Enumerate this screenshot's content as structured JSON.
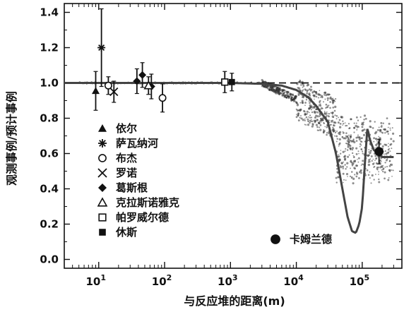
{
  "chart_data": {
    "type": "scatter",
    "title": "",
    "xlabel": "与反应堆的距离(m)",
    "ylabel": "观测事例/预计事例",
    "xscale": "log",
    "xlim": [
      3,
      400000
    ],
    "ylim": [
      -0.05,
      1.45
    ],
    "x_ticks": [
      {
        "value": 10,
        "label_base": "10",
        "label_exp": "1"
      },
      {
        "value": 100,
        "label_base": "10",
        "label_exp": "2"
      },
      {
        "value": 1000,
        "label_base": "10",
        "label_exp": "3"
      },
      {
        "value": 10000,
        "label_base": "10",
        "label_exp": "4"
      },
      {
        "value": 100000,
        "label_base": "10",
        "label_exp": "5"
      }
    ],
    "y_ticks": [
      {
        "value": 0.0,
        "label": "0.0"
      },
      {
        "value": 0.2,
        "label": "0.2"
      },
      {
        "value": 0.4,
        "label": "0.4"
      },
      {
        "value": 0.6,
        "label": "0.6"
      },
      {
        "value": 0.8,
        "label": "0.8"
      },
      {
        "value": 1.0,
        "label": "1.0"
      },
      {
        "value": 1.2,
        "label": "1.2"
      },
      {
        "value": 1.4,
        "label": "1.4"
      }
    ],
    "reference_line": {
      "y": 1.0,
      "style": "dashed"
    },
    "oscillation_curve": [
      [
        3,
        1.0
      ],
      [
        100,
        1.0
      ],
      [
        1000,
        1.0
      ],
      [
        3000,
        0.995
      ],
      [
        6000,
        0.985
      ],
      [
        10000,
        0.96
      ],
      [
        15000,
        0.92
      ],
      [
        20000,
        0.87
      ],
      [
        30000,
        0.78
      ],
      [
        40000,
        0.6
      ],
      [
        50000,
        0.4
      ],
      [
        60000,
        0.24
      ],
      [
        70000,
        0.16
      ],
      [
        80000,
        0.15
      ],
      [
        90000,
        0.2
      ],
      [
        100000,
        0.3
      ],
      [
        110000,
        0.55
      ],
      [
        120000,
        0.75
      ],
      [
        130000,
        0.68
      ],
      [
        150000,
        0.62
      ],
      [
        200000,
        0.58
      ],
      [
        300000,
        0.58
      ]
    ],
    "series": [
      {
        "name": "依尔",
        "marker": "triangle-filled",
        "points": [
          {
            "x": 9,
            "y": 0.955,
            "err": 0.11
          }
        ]
      },
      {
        "name": "萨瓦纳河",
        "marker": "asterisk",
        "points": [
          {
            "x": 11,
            "y": 1.2,
            "err": 0.22
          }
        ]
      },
      {
        "name": "布杰",
        "marker": "circle-open",
        "points": [
          {
            "x": 14,
            "y": 0.985,
            "err": 0.05
          },
          {
            "x": 93,
            "y": 0.915,
            "err": 0.08
          }
        ]
      },
      {
        "name": "罗诺",
        "marker": "x-cross",
        "points": [
          {
            "x": 17,
            "y": 0.95,
            "err": 0.06
          }
        ]
      },
      {
        "name": "葛斯根",
        "marker": "diamond-filled",
        "points": [
          {
            "x": 38,
            "y": 1.01,
            "err": 0.07
          },
          {
            "x": 46,
            "y": 1.045,
            "err": 0.07
          },
          {
            "x": 63,
            "y": 0.98,
            "err": 0.07
          }
        ]
      },
      {
        "name": "克拉斯诺雅克",
        "marker": "triangle-open",
        "points": [
          {
            "x": 57,
            "y": 0.985,
            "err": 0.05
          }
        ]
      },
      {
        "name": "帕罗威尔德",
        "marker": "square-open",
        "points": [
          {
            "x": 820,
            "y": 1.005,
            "err": 0.06
          }
        ]
      },
      {
        "name": "休斯",
        "marker": "square-filled",
        "points": [
          {
            "x": 1050,
            "y": 1.005,
            "err": 0.05
          }
        ]
      },
      {
        "name": "卡姆兰德",
        "marker": "circle-filled",
        "points": [
          {
            "x": 180000,
            "y": 0.611,
            "err": 0.07
          }
        ]
      }
    ]
  }
}
